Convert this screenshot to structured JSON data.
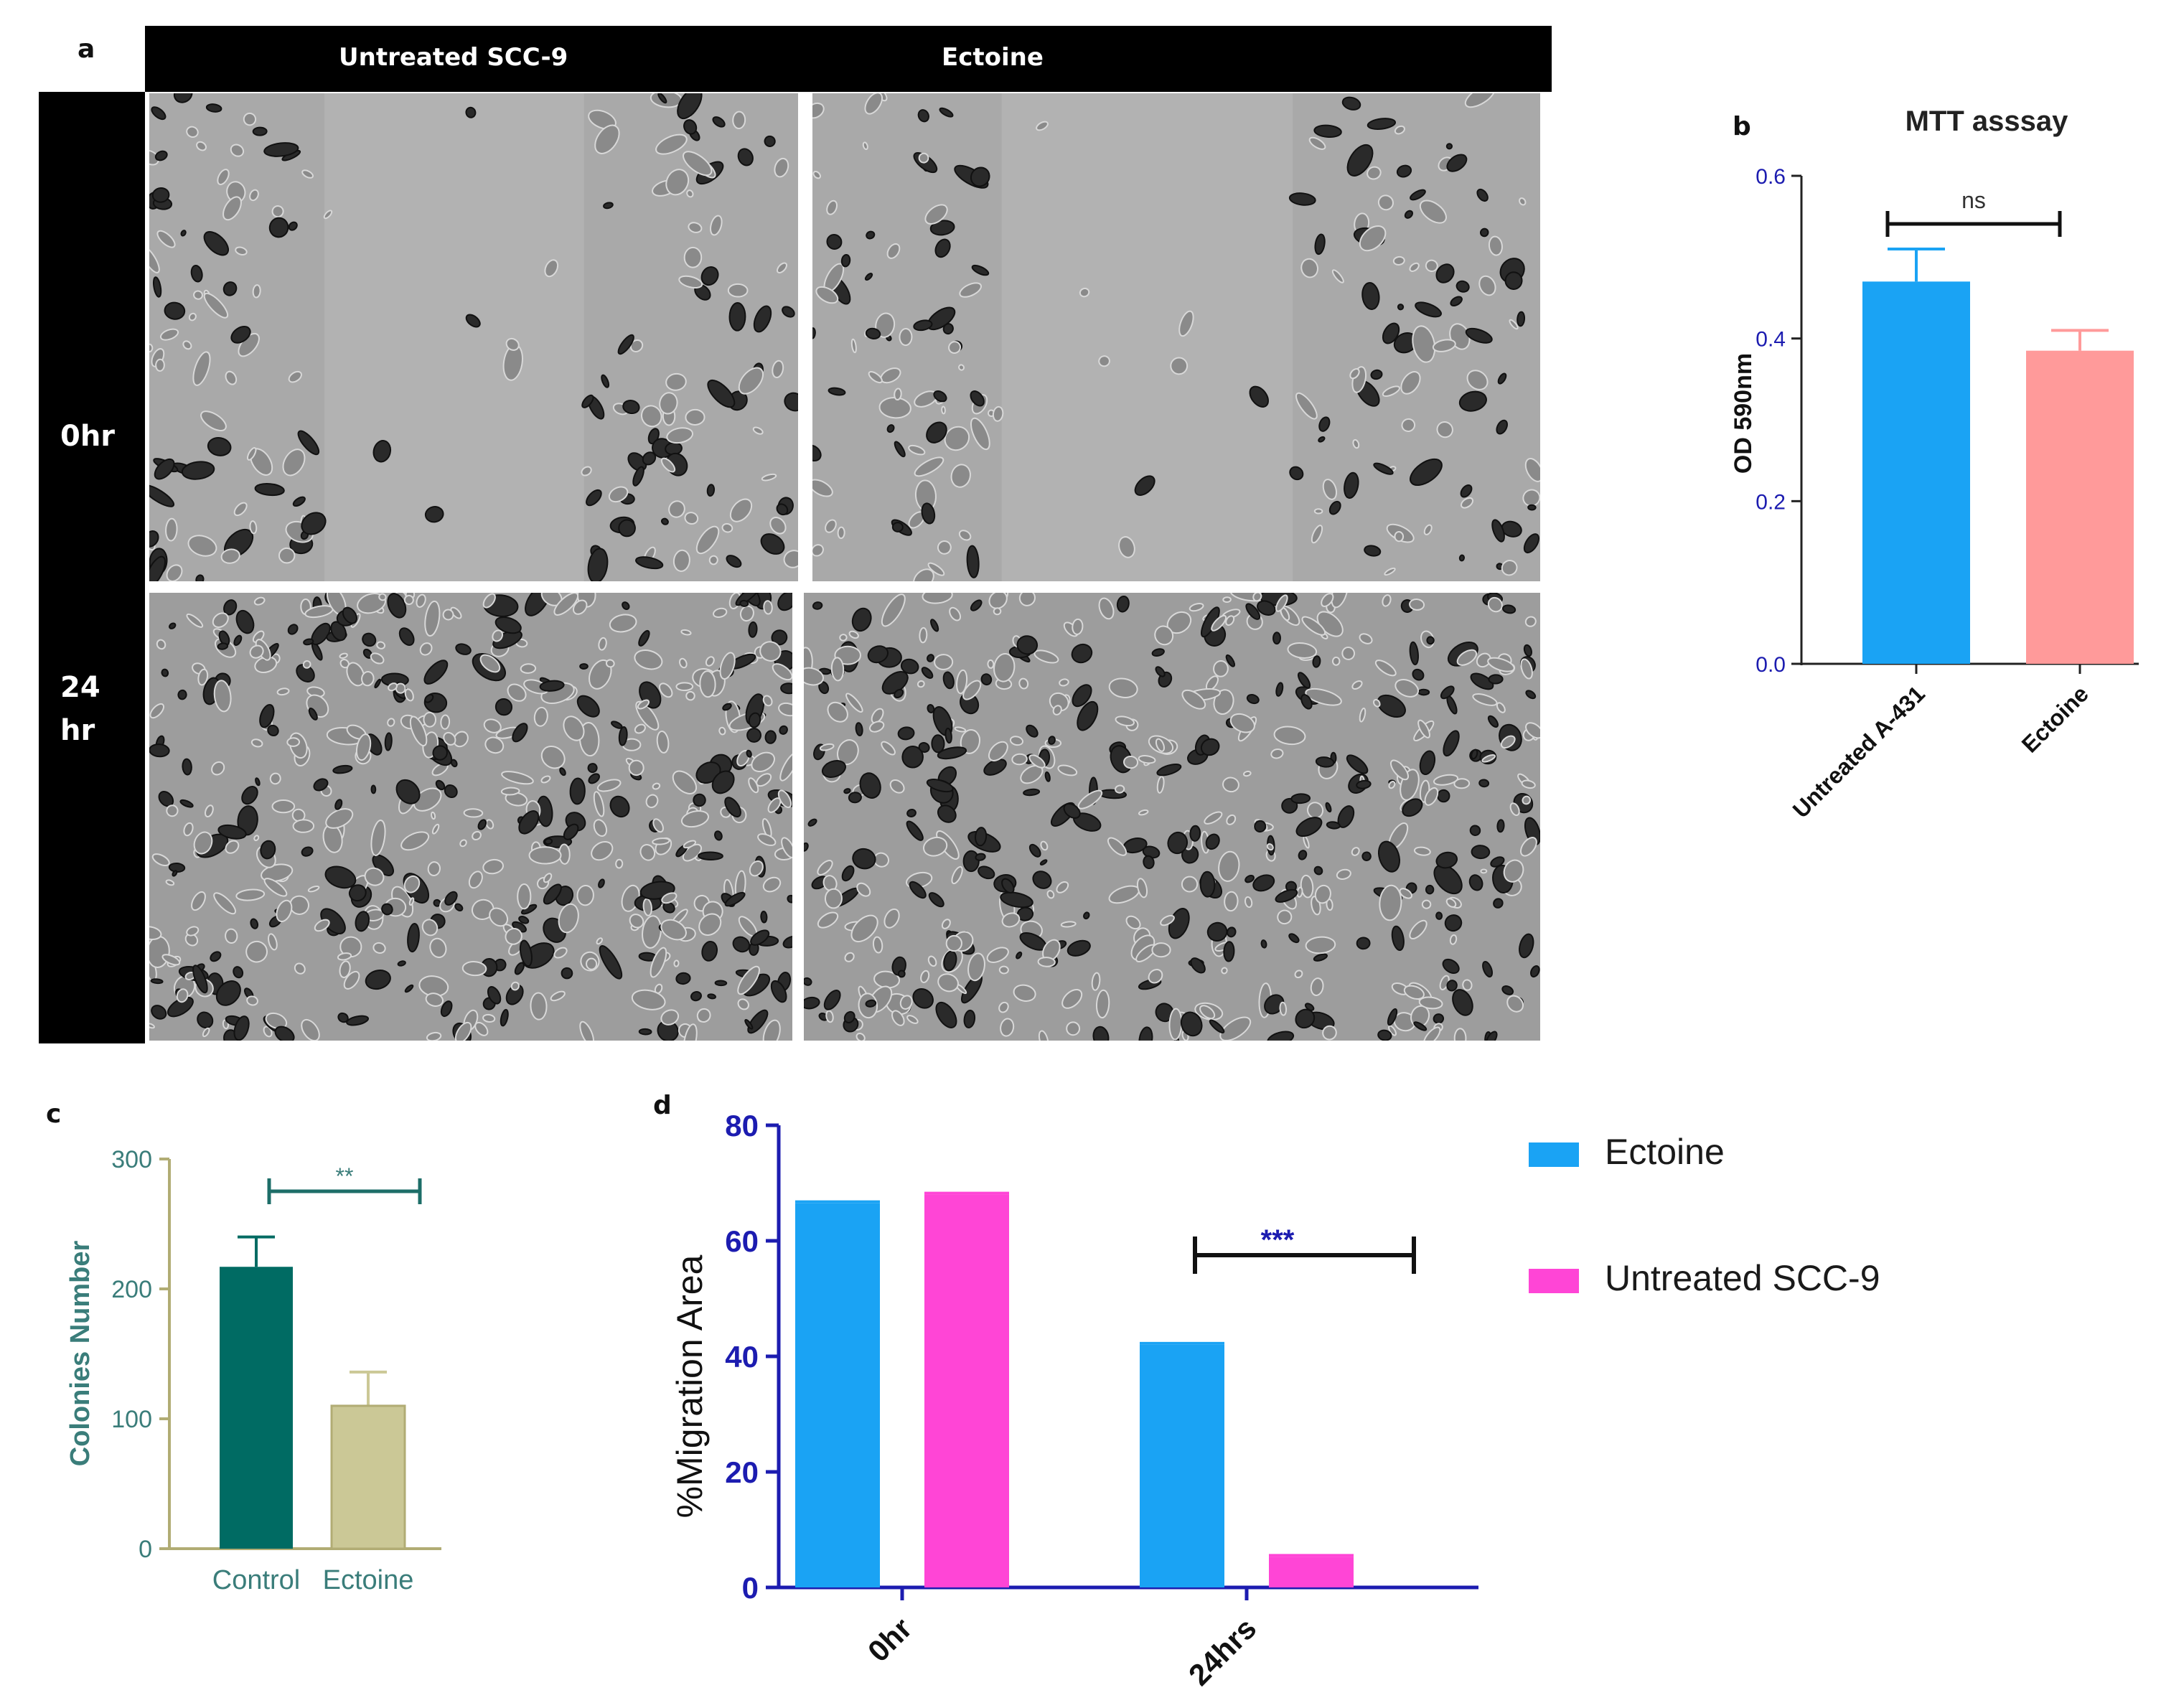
{
  "panel_a": {
    "letter": "a",
    "col_headers": [
      "Untreated SCC-9",
      "Ectoine"
    ],
    "row_headers": [
      "0hr",
      "24 hr"
    ],
    "image_descriptions": [
      "phase-contrast wound gap, untreated 0hr",
      "phase-contrast wound gap, ectoine 0hr",
      "phase-contrast cell monolayer, untreated 24hr",
      "phase-contrast cell monolayer, ectoine 24hr"
    ]
  },
  "panel_b": {
    "letter": "b",
    "significance": "ns"
  },
  "panel_c": {
    "letter": "c",
    "significance": "**"
  },
  "panel_d": {
    "letter": "d",
    "significance": "***"
  },
  "colors": {
    "blue": "#1aa3f4",
    "salmon": "#ff9a9a",
    "magenta": "#ff45d6",
    "teal": "#006b63",
    "khaki": "#cbc896",
    "teal_text": "#3a7d7a",
    "axis_blue": "#1c1cb0",
    "axis_olive": "#b1ac74"
  },
  "chart_data": [
    {
      "id": "b",
      "type": "bar",
      "title": "MTT asssay",
      "xlabel": "",
      "ylabel": "OD 590nm",
      "categories": [
        "Untreated A-431",
        "Ectoine"
      ],
      "values": [
        0.47,
        0.385
      ],
      "errors": [
        0.04,
        0.025
      ],
      "colors": [
        "#1aa3f4",
        "#ff9a9a"
      ],
      "ylim": [
        0,
        0.6
      ],
      "yticks": [
        "0.0",
        "0.2",
        "0.4",
        "0.6"
      ],
      "grid": false
    },
    {
      "id": "c",
      "type": "bar",
      "title": "",
      "xlabel": "",
      "ylabel": "Colonies Number",
      "categories": [
        "Control",
        "Ectoine"
      ],
      "values": [
        217,
        110
      ],
      "errors": [
        23,
        26
      ],
      "colors": [
        "#006b63",
        "#cbc896"
      ],
      "ylim": [
        0,
        300
      ],
      "yticks": [
        "0",
        "100",
        "200",
        "300"
      ],
      "grid": false
    },
    {
      "id": "d",
      "type": "bar",
      "title": "",
      "xlabel": "",
      "ylabel": "%Migration Area",
      "categories": [
        "0hr",
        "24hrs"
      ],
      "series": [
        {
          "name": "Ectoine",
          "values": [
            66.5,
            42
          ],
          "color": "#1aa3f4"
        },
        {
          "name": "Untreated SCC-9",
          "values": [
            68,
            5.3
          ],
          "color": "#ff45d6"
        }
      ],
      "ylim": [
        0,
        80
      ],
      "yticks": [
        "0",
        "20",
        "40",
        "60",
        "80"
      ],
      "legend": "right",
      "grid": false
    }
  ]
}
